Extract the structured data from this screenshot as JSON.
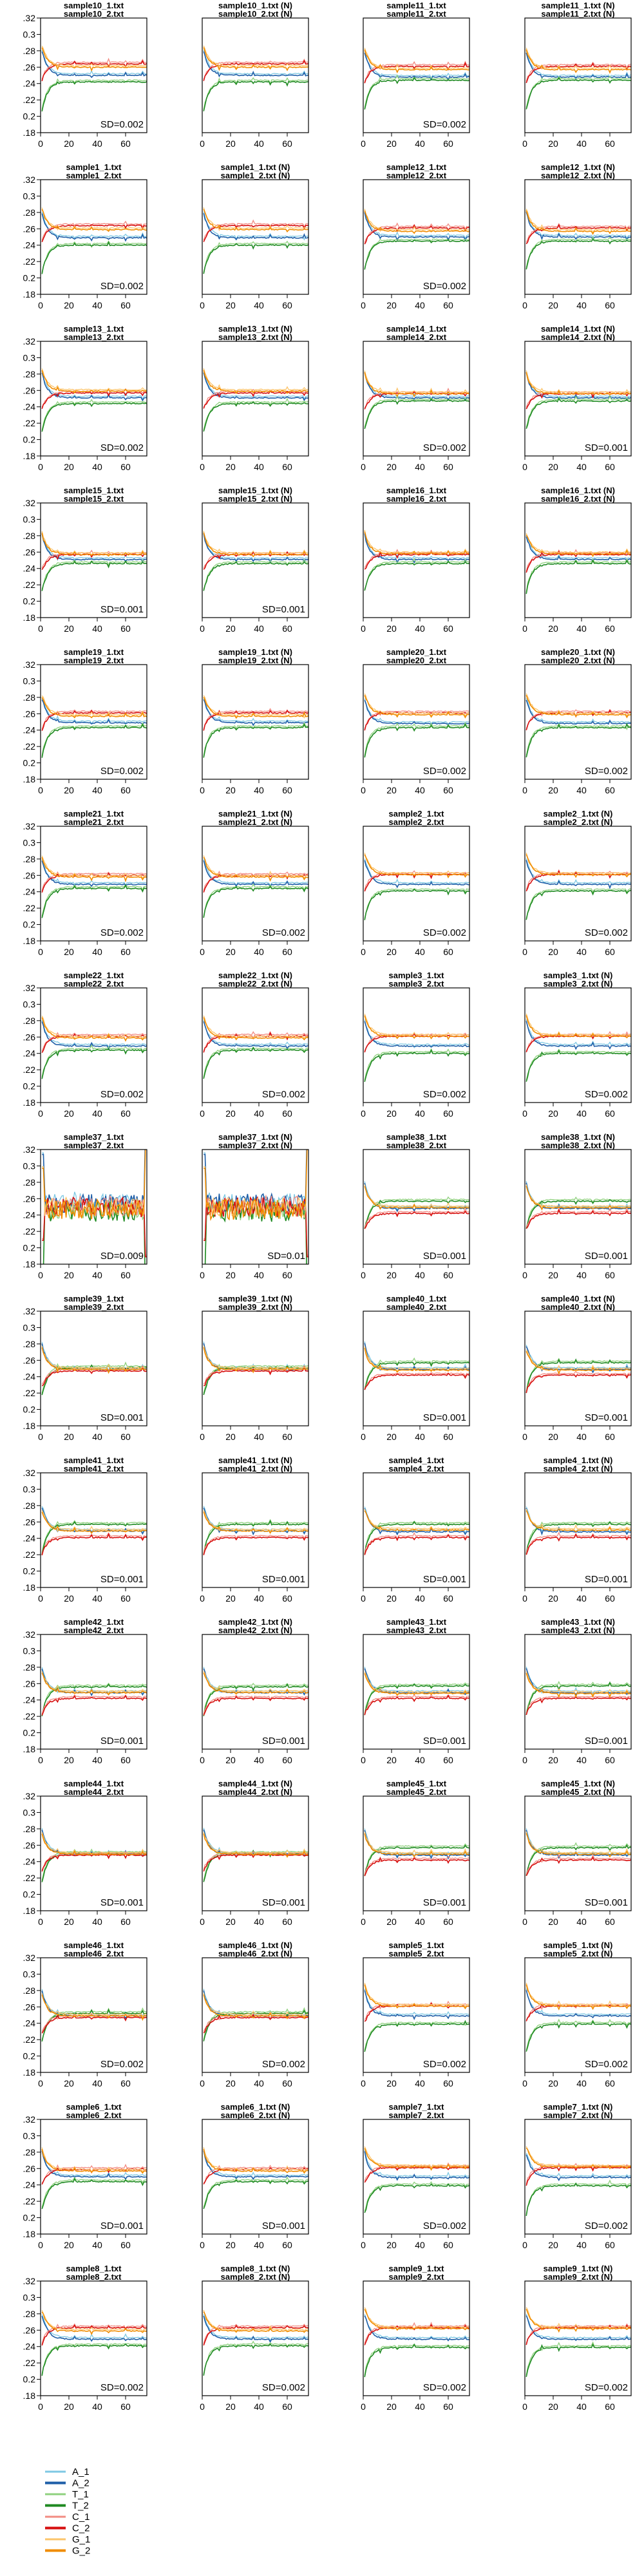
{
  "colors": {
    "A_1": "#7ec8e3",
    "A_2": "#1f5fa8",
    "T_1": "#8fd17e",
    "T_2": "#1f8a22",
    "C_1": "#f28b82",
    "C_2": "#d60f0f",
    "G_1": "#fcc46a",
    "G_2": "#f08c00"
  },
  "legend": {
    "items": [
      {
        "key": "A_1",
        "label": "A_1"
      },
      {
        "key": "A_2",
        "label": "A_2"
      },
      {
        "key": "T_1",
        "label": "T_1"
      },
      {
        "key": "T_2",
        "label": "T_2"
      },
      {
        "key": "C_1",
        "label": "C_1"
      },
      {
        "key": "C_2",
        "label": "C_2"
      },
      {
        "key": "G_1",
        "label": "G_1"
      },
      {
        "key": "G_2",
        "label": "G_2"
      }
    ]
  },
  "chart_data": {
    "type": "line",
    "layout": "small multiples, 4 columns x 15 rows",
    "x_ticks": [
      0,
      20,
      40,
      60
    ],
    "y_ticks": [
      0.18,
      0.2,
      0.22,
      0.24,
      0.26,
      0.28,
      0.3,
      0.32
    ],
    "y_tick_labels": [
      ".18",
      "0.2",
      ".22",
      ".24",
      ".26",
      ".28",
      "0.3",
      ".32"
    ],
    "xlim": [
      0,
      75
    ],
    "ylim": [
      0.18,
      0.32
    ],
    "x_ticks_visible_on_rows": [
      15
    ],
    "y_ticks_visible_on_columns": [
      1
    ],
    "grid": false,
    "legend_position": "bottom-left",
    "series_names": [
      "A_1",
      "A_2",
      "T_1",
      "T_2",
      "C_1",
      "C_2",
      "G_1",
      "G_2"
    ],
    "panels": [
      {
        "title1": "sample10_1.txt",
        "title2": "sample10_2.txt",
        "sd": "SD=0.002",
        "levels": {
          "A": 0.251,
          "T": 0.243,
          "C": 0.265,
          "G": 0.261
        }
      },
      {
        "title1": "sample10_1.txt (N)",
        "title2": "sample10_2.txt (N)",
        "sd": "",
        "levels": {
          "A": 0.251,
          "T": 0.243,
          "C": 0.265,
          "G": 0.261
        }
      },
      {
        "title1": "sample11_1.txt",
        "title2": "sample11_2.txt",
        "sd": "SD=0.002",
        "levels": {
          "A": 0.249,
          "T": 0.245,
          "C": 0.262,
          "G": 0.258
        }
      },
      {
        "title1": "sample11_1.txt (N)",
        "title2": "sample11_2.txt (N)",
        "sd": "",
        "levels": {
          "A": 0.249,
          "T": 0.245,
          "C": 0.262,
          "G": 0.258
        }
      },
      {
        "title1": "sample1_1.txt",
        "title2": "sample1_2.txt",
        "sd": "SD=0.002",
        "levels": {
          "A": 0.25,
          "T": 0.241,
          "C": 0.265,
          "G": 0.26
        }
      },
      {
        "title1": "sample1_1.txt (N)",
        "title2": "sample1_2.txt (N)",
        "sd": "",
        "levels": {
          "A": 0.25,
          "T": 0.241,
          "C": 0.265,
          "G": 0.26
        }
      },
      {
        "title1": "sample12_1.txt",
        "title2": "sample12_2.txt",
        "sd": "SD=0.002",
        "levels": {
          "A": 0.251,
          "T": 0.246,
          "C": 0.262,
          "G": 0.258
        }
      },
      {
        "title1": "sample12_1.txt (N)",
        "title2": "sample12_2.txt (N)",
        "sd": "",
        "levels": {
          "A": 0.251,
          "T": 0.246,
          "C": 0.262,
          "G": 0.258
        }
      },
      {
        "title1": "sample13_1.txt",
        "title2": "sample13_2.txt",
        "sd": "SD=0.002",
        "levels": {
          "A": 0.252,
          "T": 0.245,
          "C": 0.258,
          "G": 0.26
        }
      },
      {
        "title1": "sample13_1.txt (N)",
        "title2": "sample13_2.txt (N)",
        "sd": "",
        "levels": {
          "A": 0.252,
          "T": 0.245,
          "C": 0.258,
          "G": 0.26
        }
      },
      {
        "title1": "sample14_1.txt",
        "title2": "sample14_2.txt",
        "sd": "SD=0.002",
        "levels": {
          "A": 0.252,
          "T": 0.248,
          "C": 0.257,
          "G": 0.257
        }
      },
      {
        "title1": "sample14_1.txt (N)",
        "title2": "sample14_2.txt (N)",
        "sd": "SD=0.001",
        "levels": {
          "A": 0.252,
          "T": 0.248,
          "C": 0.257,
          "G": 0.257
        }
      },
      {
        "title1": "sample15_1.txt",
        "title2": "sample15_2.txt",
        "sd": "SD=0.001",
        "levels": {
          "A": 0.252,
          "T": 0.247,
          "C": 0.258,
          "G": 0.258
        }
      },
      {
        "title1": "sample15_1.txt (N)",
        "title2": "sample15_2.txt (N)",
        "sd": "SD=0.001",
        "levels": {
          "A": 0.252,
          "T": 0.247,
          "C": 0.258,
          "G": 0.258
        }
      },
      {
        "title1": "sample16_1.txt",
        "title2": "sample16_2.txt",
        "sd": "",
        "levels": {
          "A": 0.252,
          "T": 0.247,
          "C": 0.258,
          "G": 0.259
        }
      },
      {
        "title1": "sample16_1.txt (N)",
        "title2": "sample16_2.txt (N)",
        "sd": "",
        "levels": {
          "A": 0.252,
          "T": 0.247,
          "C": 0.258,
          "G": 0.259
        }
      },
      {
        "title1": "sample19_1.txt",
        "title2": "sample19_2.txt",
        "sd": "SD=0.002",
        "levels": {
          "A": 0.25,
          "T": 0.244,
          "C": 0.262,
          "G": 0.258
        }
      },
      {
        "title1": "sample19_1.txt (N)",
        "title2": "sample19_2.txt (N)",
        "sd": "",
        "levels": {
          "A": 0.25,
          "T": 0.244,
          "C": 0.262,
          "G": 0.258
        }
      },
      {
        "title1": "sample20_1.txt",
        "title2": "sample20_2.txt",
        "sd": "SD=0.002",
        "levels": {
          "A": 0.249,
          "T": 0.244,
          "C": 0.262,
          "G": 0.26
        }
      },
      {
        "title1": "sample20_1.txt (N)",
        "title2": "sample20_2.txt (N)",
        "sd": "SD=0.002",
        "levels": {
          "A": 0.249,
          "T": 0.244,
          "C": 0.262,
          "G": 0.26
        }
      },
      {
        "title1": "sample21_1.txt",
        "title2": "sample21_2.txt",
        "sd": "SD=0.002",
        "levels": {
          "A": 0.25,
          "T": 0.245,
          "C": 0.261,
          "G": 0.259
        }
      },
      {
        "title1": "sample21_1.txt (N)",
        "title2": "sample21_2.txt (N)",
        "sd": "SD=0.002",
        "levels": {
          "A": 0.25,
          "T": 0.245,
          "C": 0.261,
          "G": 0.259
        }
      },
      {
        "title1": "sample2_1.txt",
        "title2": "sample2_2.txt",
        "sd": "SD=0.002",
        "levels": {
          "A": 0.25,
          "T": 0.242,
          "C": 0.262,
          "G": 0.262
        }
      },
      {
        "title1": "sample2_1.txt (N)",
        "title2": "sample2_2.txt (N)",
        "sd": "SD=0.002",
        "levels": {
          "A": 0.25,
          "T": 0.242,
          "C": 0.262,
          "G": 0.262
        }
      },
      {
        "title1": "sample22_1.txt",
        "title2": "sample22_2.txt",
        "sd": "SD=0.002",
        "levels": {
          "A": 0.25,
          "T": 0.245,
          "C": 0.262,
          "G": 0.26
        }
      },
      {
        "title1": "sample22_1.txt (N)",
        "title2": "sample22_2.txt (N)",
        "sd": "SD=0.002",
        "levels": {
          "A": 0.25,
          "T": 0.245,
          "C": 0.262,
          "G": 0.26
        }
      },
      {
        "title1": "sample3_1.txt",
        "title2": "sample3_2.txt",
        "sd": "SD=0.002",
        "levels": {
          "A": 0.25,
          "T": 0.241,
          "C": 0.262,
          "G": 0.262
        }
      },
      {
        "title1": "sample3_1.txt (N)",
        "title2": "sample3_2.txt (N)",
        "sd": "SD=0.002",
        "levels": {
          "A": 0.25,
          "T": 0.241,
          "C": 0.262,
          "G": 0.262
        }
      },
      {
        "title1": "sample37_1.txt",
        "title2": "sample37_2.txt",
        "sd": "SD=0.009",
        "levels": {
          "A": 0.255,
          "T": 0.245,
          "C": 0.25,
          "G": 0.248
        }
      },
      {
        "title1": "sample37_1.txt (N)",
        "title2": "sample37_2.txt (N)",
        "sd": "SD=0.01",
        "levels": {
          "A": 0.255,
          "T": 0.245,
          "C": 0.25,
          "G": 0.248
        }
      },
      {
        "title1": "sample38_1.txt",
        "title2": "sample38_2.txt",
        "sd": "SD=0.001",
        "levels": {
          "A": 0.249,
          "T": 0.258,
          "C": 0.243,
          "G": 0.25
        }
      },
      {
        "title1": "sample38_1.txt (N)",
        "title2": "sample38_2.txt (N)",
        "sd": "SD=0.001",
        "levels": {
          "A": 0.249,
          "T": 0.258,
          "C": 0.243,
          "G": 0.25
        }
      },
      {
        "title1": "sample39_1.txt",
        "title2": "sample39_2.txt",
        "sd": "SD=0.001",
        "levels": {
          "A": 0.25,
          "T": 0.252,
          "C": 0.248,
          "G": 0.25
        }
      },
      {
        "title1": "sample39_1.txt (N)",
        "title2": "sample39_2.txt (N)",
        "sd": "",
        "levels": {
          "A": 0.25,
          "T": 0.252,
          "C": 0.248,
          "G": 0.25
        }
      },
      {
        "title1": "sample40_1.txt",
        "title2": "sample40_2.txt",
        "sd": "SD=0.001",
        "levels": {
          "A": 0.25,
          "T": 0.258,
          "C": 0.243,
          "G": 0.249
        }
      },
      {
        "title1": "sample40_1.txt (N)",
        "title2": "sample40_2.txt (N)",
        "sd": "SD=0.001",
        "levels": {
          "A": 0.25,
          "T": 0.258,
          "C": 0.243,
          "G": 0.249
        }
      },
      {
        "title1": "sample41_1.txt",
        "title2": "sample41_2.txt",
        "sd": "SD=0.001",
        "levels": {
          "A": 0.25,
          "T": 0.258,
          "C": 0.242,
          "G": 0.25
        }
      },
      {
        "title1": "sample41_1.txt (N)",
        "title2": "sample41_2.txt (N)",
        "sd": "SD=0.001",
        "levels": {
          "A": 0.25,
          "T": 0.258,
          "C": 0.242,
          "G": 0.25
        }
      },
      {
        "title1": "sample4_1.txt",
        "title2": "sample4_2.txt",
        "sd": "SD=0.001",
        "levels": {
          "A": 0.249,
          "T": 0.258,
          "C": 0.242,
          "G": 0.251
        }
      },
      {
        "title1": "sample4_1.txt (N)",
        "title2": "sample4_2.txt (N)",
        "sd": "SD=0.001",
        "levels": {
          "A": 0.249,
          "T": 0.258,
          "C": 0.242,
          "G": 0.251
        }
      },
      {
        "title1": "sample42_1.txt",
        "title2": "sample42_2.txt",
        "sd": "SD=0.001",
        "levels": {
          "A": 0.25,
          "T": 0.257,
          "C": 0.243,
          "G": 0.25
        }
      },
      {
        "title1": "sample42_1.txt (N)",
        "title2": "sample42_2.txt (N)",
        "sd": "SD=0.001",
        "levels": {
          "A": 0.25,
          "T": 0.257,
          "C": 0.243,
          "G": 0.25
        }
      },
      {
        "title1": "sample43_1.txt",
        "title2": "sample43_2.txt",
        "sd": "SD=0.001",
        "levels": {
          "A": 0.25,
          "T": 0.258,
          "C": 0.243,
          "G": 0.249
        }
      },
      {
        "title1": "sample43_1.txt (N)",
        "title2": "sample43_2.txt (N)",
        "sd": "SD=0.001",
        "levels": {
          "A": 0.25,
          "T": 0.258,
          "C": 0.243,
          "G": 0.249
        }
      },
      {
        "title1": "sample44_1.txt",
        "title2": "sample44_2.txt",
        "sd": "SD=0.001",
        "levels": {
          "A": 0.25,
          "T": 0.251,
          "C": 0.249,
          "G": 0.25
        }
      },
      {
        "title1": "sample44_1.txt (N)",
        "title2": "sample44_2.txt (N)",
        "sd": "SD=0.001",
        "levels": {
          "A": 0.25,
          "T": 0.251,
          "C": 0.249,
          "G": 0.25
        }
      },
      {
        "title1": "sample45_1.txt",
        "title2": "sample45_2.txt",
        "sd": "SD=0.001",
        "levels": {
          "A": 0.249,
          "T": 0.258,
          "C": 0.243,
          "G": 0.25
        }
      },
      {
        "title1": "sample45_1.txt (N)",
        "title2": "sample45_2.txt (N)",
        "sd": "SD=0.001",
        "levels": {
          "A": 0.249,
          "T": 0.258,
          "C": 0.243,
          "G": 0.25
        }
      },
      {
        "title1": "sample46_1.txt",
        "title2": "sample46_2.txt",
        "sd": "SD=0.002",
        "levels": {
          "A": 0.25,
          "T": 0.253,
          "C": 0.248,
          "G": 0.25
        }
      },
      {
        "title1": "sample46_1.txt (N)",
        "title2": "sample46_2.txt (N)",
        "sd": "SD=0.002",
        "levels": {
          "A": 0.25,
          "T": 0.253,
          "C": 0.248,
          "G": 0.25
        }
      },
      {
        "title1": "sample5_1.txt",
        "title2": "sample5_2.txt",
        "sd": "SD=0.002",
        "levels": {
          "A": 0.25,
          "T": 0.24,
          "C": 0.262,
          "G": 0.262
        }
      },
      {
        "title1": "sample5_1.txt (N)",
        "title2": "sample5_2.txt (N)",
        "sd": "SD=0.002",
        "levels": {
          "A": 0.25,
          "T": 0.24,
          "C": 0.262,
          "G": 0.262
        }
      },
      {
        "title1": "sample6_1.txt",
        "title2": "sample6_2.txt",
        "sd": "SD=0.001",
        "levels": {
          "A": 0.251,
          "T": 0.245,
          "C": 0.26,
          "G": 0.258
        }
      },
      {
        "title1": "sample6_1.txt (N)",
        "title2": "sample6_2.txt (N)",
        "sd": "SD=0.001",
        "levels": {
          "A": 0.251,
          "T": 0.245,
          "C": 0.26,
          "G": 0.258
        }
      },
      {
        "title1": "sample7_1.txt",
        "title2": "sample7_2.txt",
        "sd": "SD=0.002",
        "levels": {
          "A": 0.25,
          "T": 0.24,
          "C": 0.262,
          "G": 0.263
        }
      },
      {
        "title1": "sample7_1.txt (N)",
        "title2": "sample7_2.txt (N)",
        "sd": "SD=0.002",
        "levels": {
          "A": 0.25,
          "T": 0.24,
          "C": 0.262,
          "G": 0.263
        }
      },
      {
        "title1": "sample8_1.txt",
        "title2": "sample8_2.txt",
        "sd": "SD=0.002",
        "levels": {
          "A": 0.25,
          "T": 0.242,
          "C": 0.264,
          "G": 0.26
        }
      },
      {
        "title1": "sample8_1.txt (N)",
        "title2": "sample8_2.txt (N)",
        "sd": "SD=0.002",
        "levels": {
          "A": 0.25,
          "T": 0.242,
          "C": 0.264,
          "G": 0.26
        }
      },
      {
        "title1": "sample9_1.txt",
        "title2": "sample9_2.txt",
        "sd": "SD=0.002",
        "levels": {
          "A": 0.25,
          "T": 0.24,
          "C": 0.264,
          "G": 0.263
        }
      },
      {
        "title1": "sample9_1.txt (N)",
        "title2": "sample9_2.txt (N)",
        "sd": "SD=0.002",
        "levels": {
          "A": 0.25,
          "T": 0.24,
          "C": 0.264,
          "G": 0.263
        }
      }
    ]
  }
}
